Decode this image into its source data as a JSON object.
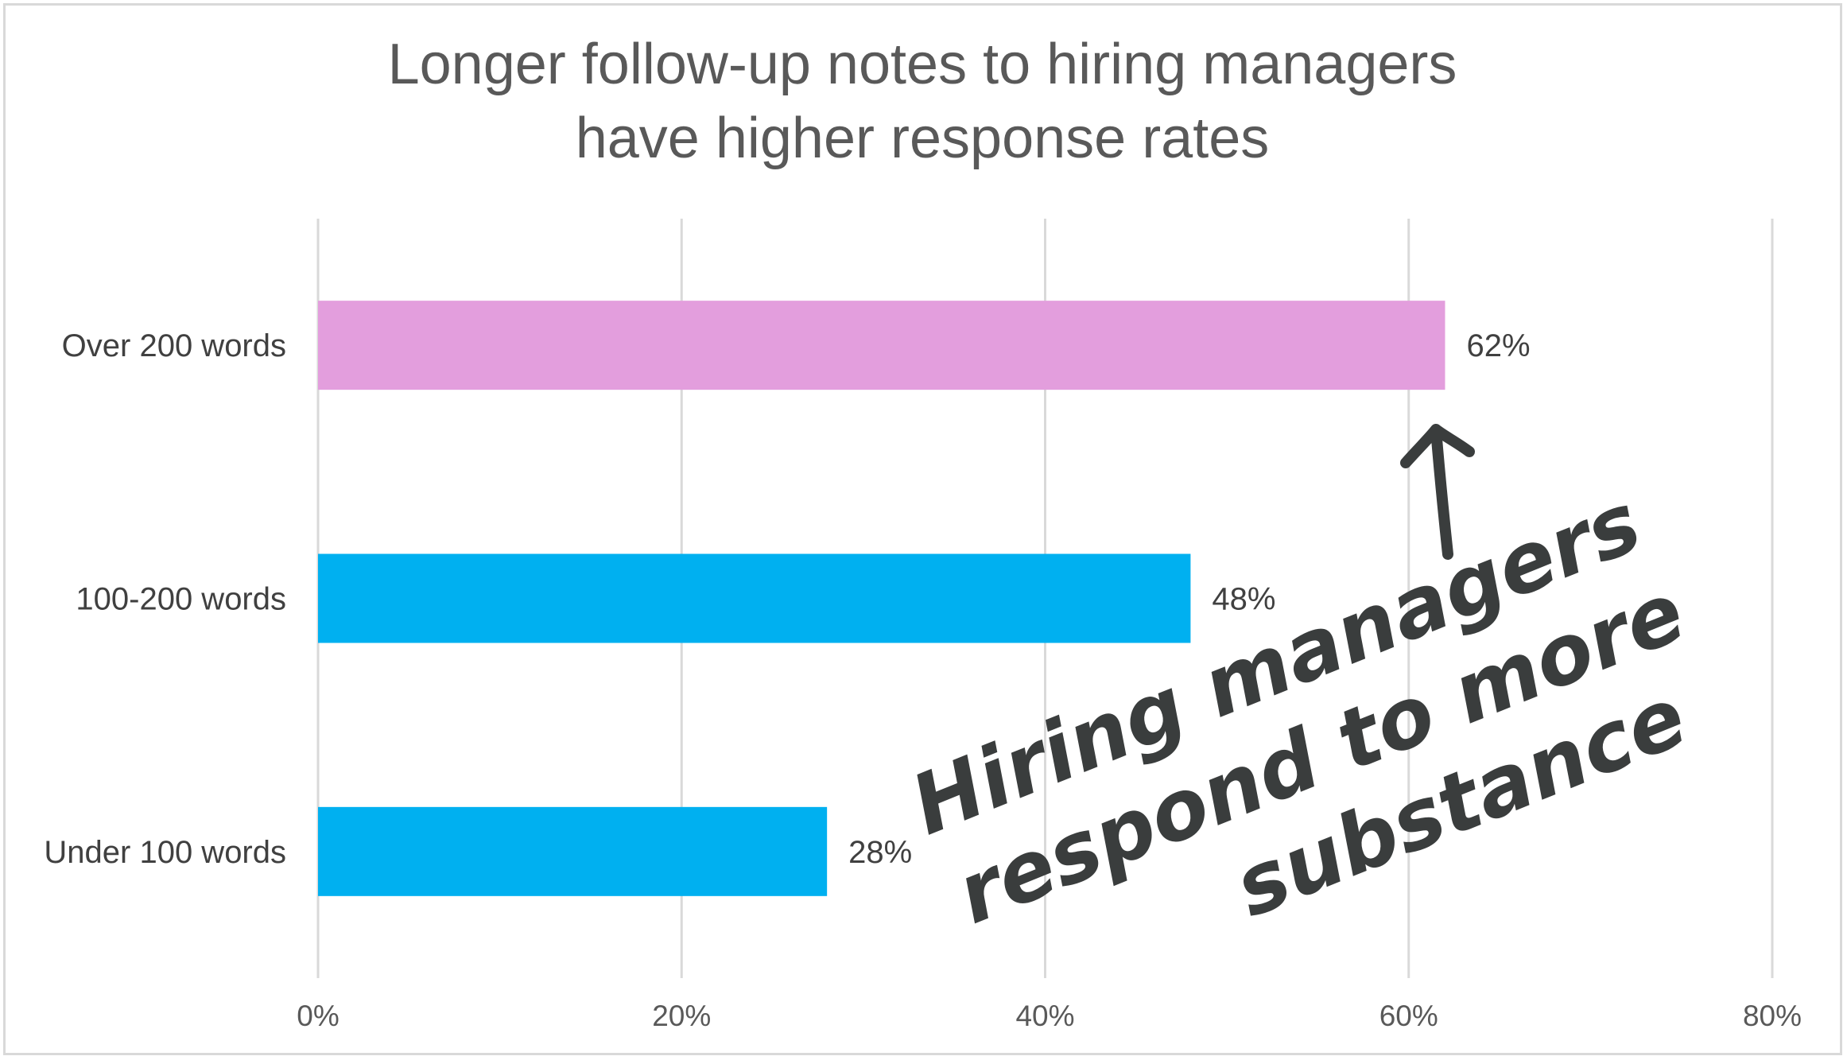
{
  "chart_data": {
    "type": "bar",
    "orientation": "horizontal",
    "title": [
      "Longer follow-up notes to hiring managers",
      "have higher response rates"
    ],
    "categories": [
      "Over 200 words",
      "100-200 words",
      "Under 100 words"
    ],
    "values": [
      62,
      48,
      28
    ],
    "data_labels": [
      "62%",
      "48%",
      "28%"
    ],
    "bar_colors": [
      "#e39edd",
      "#00b0f0",
      "#00b0f0"
    ],
    "xlim": [
      0,
      80
    ],
    "x_ticks": [
      0,
      20,
      40,
      60,
      80
    ],
    "x_tick_labels": [
      "0%",
      "20%",
      "40%",
      "60%",
      "80%"
    ],
    "grid": true,
    "grid_color": "#d9d9d9",
    "legend": "none",
    "annotation": {
      "lines": [
        "Hiring managers",
        "respond to more",
        "substance"
      ],
      "style": "handwritten",
      "points_to": "Over 200 words",
      "color": "#3a3d3d"
    }
  }
}
